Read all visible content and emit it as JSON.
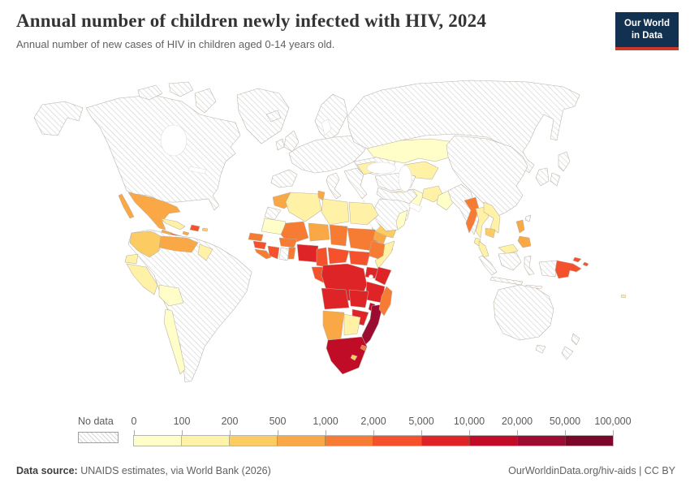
{
  "header": {
    "title": "Annual number of children newly infected with HIV, 2024",
    "subtitle": "Annual number of new cases of HIV in children aged 0-14 years old.",
    "logo": {
      "line1": "Our World",
      "line2": "in Data",
      "bg_color": "#12304f",
      "accent_color": "#cb3929"
    }
  },
  "legend": {
    "no_data_label": "No data",
    "tick_labels": [
      "0",
      "100",
      "200",
      "500",
      "1,000",
      "2,000",
      "5,000",
      "10,000",
      "20,000",
      "50,000",
      "100,000"
    ]
  },
  "footer": {
    "source_label": "Data source:",
    "source_text": " UNAIDS estimates, via World Bank (2026)",
    "site_text": "OurWorldinData.org/hiv-aids | CC BY"
  },
  "chart_data": {
    "type": "choropleth_map",
    "title": "Annual number of children newly infected with HIV, 2024",
    "unit": "new HIV infections among children aged 0-14 years",
    "year": "2024",
    "legend_position": "bottom",
    "no_data": {
      "label": "No data",
      "pattern": "diagonal-hatch",
      "hatch_color": "#d8d8d8"
    },
    "bins": [
      {
        "min": 0,
        "max": 100,
        "color": "#FFFDC8"
      },
      {
        "min": 100,
        "max": 200,
        "color": "#FFF2A7"
      },
      {
        "min": 200,
        "max": 500,
        "color": "#FCCC62"
      },
      {
        "min": 500,
        "max": 1000,
        "color": "#F9A845"
      },
      {
        "min": 1000,
        "max": 2000,
        "color": "#F67C33"
      },
      {
        "min": 2000,
        "max": 5000,
        "color": "#F4512C"
      },
      {
        "min": 5000,
        "max": 10000,
        "color": "#DF2427"
      },
      {
        "min": 10000,
        "max": 20000,
        "color": "#C00C27"
      },
      {
        "min": 20000,
        "max": 50000,
        "color": "#9C0B31"
      },
      {
        "min": 50000,
        "max": 100000,
        "color": "#7B0629"
      }
    ],
    "region_values": {
      "north-america": "no_data",
      "greenland": "no_data",
      "iceland": "no_data",
      "south-america": "no_data",
      "scandinavia": "no_data",
      "uk": "no_data",
      "ireland": "no_data",
      "west-europe": "no_data",
      "ukraine": "no_data",
      "iberia": "no_data",
      "italy": "no_data",
      "balkans-greece": "no_data",
      "turkey": "no_data",
      "levant-iraq": "no_data",
      "arabia": "no_data",
      "russia": "no_data",
      "korea": "no_data",
      "japan": "no_data",
      "china": "no_data",
      "india": "no_data",
      "indonesia": "no_data",
      "taiwan": "no_data",
      "australia": "no_data",
      "new-zealand": "no_data",
      "ghana": "no_data",
      "western-sahara": "no_data",
      "romania": 1,
      "kazakhstan": 0,
      "central-asia": 1,
      "iran": 0,
      "afghanistan": 1,
      "pakistan": 0,
      "yemen": 2,
      "oman": 0,
      "myanmar": 4,
      "thailand": 1,
      "vietnam-laos": 1,
      "cambodia": 2,
      "malaysia": 1,
      "sri-lanka": 1,
      "philippines": 3,
      "png": 5,
      "fiji": 1,
      "mexico": 3,
      "guatemala": 3,
      "honduras-nicaragua": 5,
      "costa-rica-panama": 3,
      "cuba": 1,
      "jamaica": 3,
      "hispaniola": 5,
      "puerto-rico": 2,
      "colombia": 2,
      "venezuela": 3,
      "guyanas": 1,
      "ecuador": 1,
      "peru": 1,
      "bolivia": 0,
      "chile": 0,
      "morocco": 3,
      "algeria": 1,
      "tunisia": 3,
      "libya": 1,
      "egypt": 1,
      "mauritania": 0,
      "mali": 4,
      "niger": 3,
      "chad": 4,
      "sudan": 4,
      "senegal": 4,
      "guinea": 5,
      "sierra-leone-liberia": 4,
      "cote-divoire": 5,
      "togo-benin": 4,
      "burkina": 4,
      "nigeria": 6,
      "cameroon": 5,
      "car": 5,
      "south-sudan": 5,
      "eritrea-djibouti": 3,
      "ethiopia": 4,
      "somalia": 1,
      "gabon-congo": 5,
      "drc": 6,
      "uganda": 6,
      "kenya": 6,
      "tanzania": 6,
      "angola": 6,
      "zambia": 6,
      "malawi": 7,
      "mozambique": 8,
      "zimbabwe": 6,
      "namibia": 3,
      "botswana": 1,
      "south-africa": 7,
      "lesotho": 2,
      "eswatini": 4,
      "madagascar": 4
    }
  }
}
